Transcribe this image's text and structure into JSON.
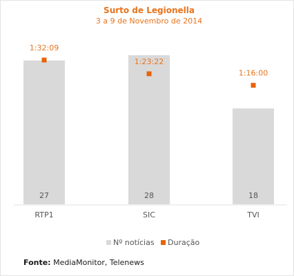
{
  "chart_data": {
    "type": "bar",
    "title": "Surto de Legionella",
    "subtitle": "3 a 9 de Novembro de 2014",
    "categories": [
      "RTP1",
      "SIC",
      "TVI"
    ],
    "series": [
      {
        "name": "Nº notícias",
        "type": "bar",
        "values": [
          27,
          28,
          18
        ],
        "color": "#d9d9d9"
      },
      {
        "name": "Duração",
        "type": "scatter",
        "values": [
          92.15,
          83.37,
          76.0
        ],
        "labels": [
          "1:32:09",
          "1:23:22",
          "1:16:00"
        ],
        "unit": "minutes",
        "color": "#e8630a"
      }
    ],
    "ylim_bars": [
      0,
      28
    ],
    "ylim_duration": [
      0,
      92.15
    ],
    "grid": false,
    "legend": {
      "position": "bottom",
      "entries": [
        "Nº notícias",
        "Duração"
      ]
    }
  },
  "source": {
    "label": "Fonte:",
    "text": "MediaMonitor, Telenews"
  }
}
